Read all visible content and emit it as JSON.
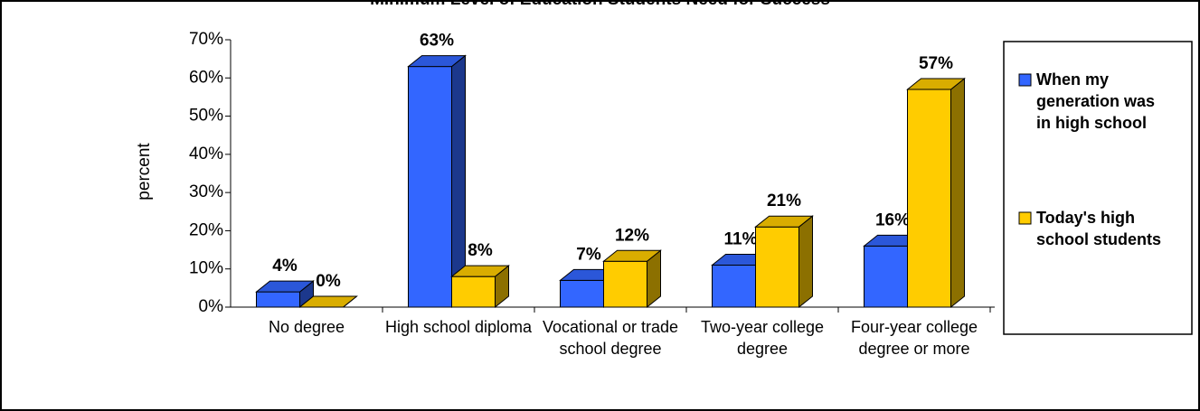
{
  "chart_data": {
    "type": "bar3d",
    "title": "Minimum Level of Education Students Need for Success",
    "y_label": "percent",
    "categories": [
      "No degree",
      "High school diploma",
      "Vocational or trade school degree",
      "Two-year college degree",
      "Four-year college degree or more"
    ],
    "series": [
      {
        "name": "When my generation was in high school",
        "color": "#3366ff",
        "values": [
          4,
          63,
          7,
          11,
          16
        ],
        "value_labels": [
          "4%",
          "63%",
          "7%",
          "11%",
          "16%"
        ]
      },
      {
        "name": "Today's high school students",
        "color": "#ffcc00",
        "values": [
          0,
          8,
          12,
          21,
          57
        ],
        "value_labels": [
          "0%",
          "8%",
          "12%",
          "21%",
          "57%"
        ]
      }
    ],
    "ylim": [
      0,
      70
    ],
    "yticks": [
      {
        "value": 0,
        "label": "0%"
      },
      {
        "value": 10,
        "label": "10%"
      },
      {
        "value": 20,
        "label": "20%"
      },
      {
        "value": 30,
        "label": "30%"
      },
      {
        "value": 40,
        "label": "40%"
      },
      {
        "value": 50,
        "label": "50%"
      },
      {
        "value": 60,
        "label": "60%"
      },
      {
        "value": 70,
        "label": "70%"
      }
    ],
    "legend": "right"
  }
}
